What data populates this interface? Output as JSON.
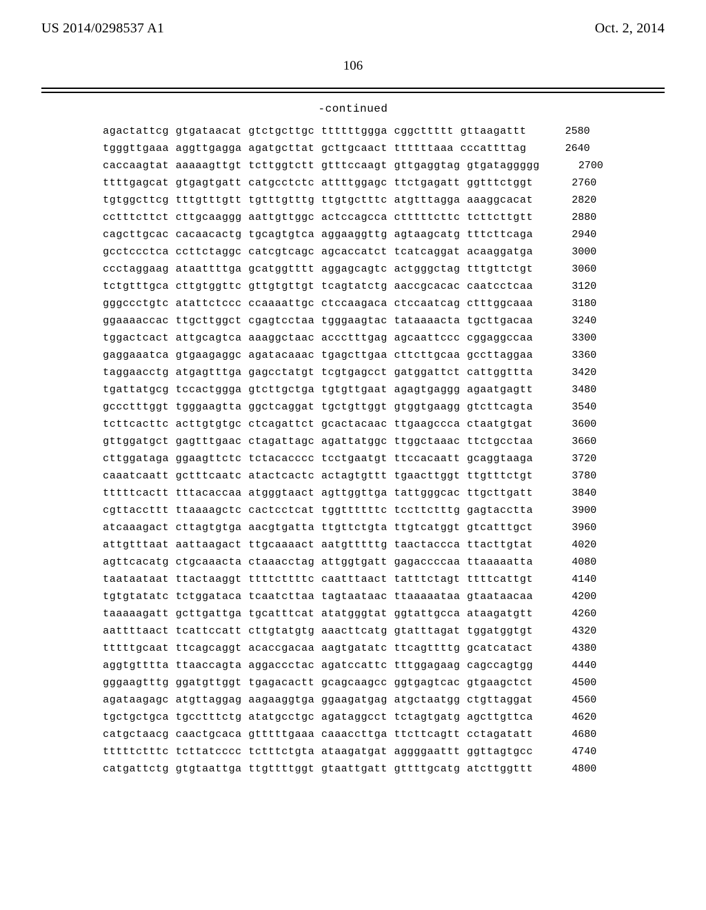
{
  "header": {
    "publication_number": "US 2014/0298537 A1",
    "date": "Oct. 2, 2014"
  },
  "page_number": "106",
  "continued_label": "-continued",
  "sequence": {
    "font_family": "Courier New",
    "font_size_pt": 11,
    "text_color": "#000000",
    "background_color": "#ffffff",
    "rows": [
      {
        "groups": [
          "agactattcg",
          "gtgataacat",
          "gtctgcttgc",
          "ttttttggga",
          "cggcttttt",
          "gttaagattt"
        ],
        "pos": 2580
      },
      {
        "groups": [
          "tgggttgaaa",
          "aggttgagga",
          "agatgcttat",
          "gcttgcaact",
          "ttttttaaa",
          "cccattttag"
        ],
        "pos": 2640
      },
      {
        "groups": [
          "caccaagtat",
          "aaaaagttgt",
          "tcttggtctt",
          "gtttccaagt",
          "gttgaggtag",
          "gtgataggggg"
        ],
        "pos": 2700
      },
      {
        "groups": [
          "ttttgagcat",
          "gtgagtgatt",
          "catgcctctc",
          "attttggagc",
          "ttctgagatt",
          "ggtttctggt"
        ],
        "pos": 2760
      },
      {
        "groups": [
          "tgtggcttcg",
          "tttgtttgtt",
          "tgtttgtttg",
          "ttgtgctttc",
          "atgtttagga",
          "aaaggcacat"
        ],
        "pos": 2820
      },
      {
        "groups": [
          "cctttcttct",
          "cttgcaaggg",
          "aattgttggc",
          "actccagcca",
          "ctttttcttc",
          "tcttcttgtt"
        ],
        "pos": 2880
      },
      {
        "groups": [
          "cagcttgcac",
          "cacaacactg",
          "tgcagtgtca",
          "aggaaggttg",
          "agtaagcatg",
          "tttcttcaga"
        ],
        "pos": 2940
      },
      {
        "groups": [
          "gcctccctca",
          "ccttctaggc",
          "catcgtcagc",
          "agcaccatct",
          "tcatcaggat",
          "acaaggatga"
        ],
        "pos": 3000
      },
      {
        "groups": [
          "ccctaggaag",
          "ataattttga",
          "gcatggtttt",
          "aggagcagtc",
          "actgggctag",
          "tttgttctgt"
        ],
        "pos": 3060
      },
      {
        "groups": [
          "tctgtttgca",
          "cttgtggttc",
          "gttgtgttgt",
          "tcagtatctg",
          "aaccgcacac",
          "caatcctcaa"
        ],
        "pos": 3120
      },
      {
        "groups": [
          "gggccctgtc",
          "atattctccc",
          "ccaaaattgc",
          "ctccaagaca",
          "ctccaatcag",
          "ctttggcaaa"
        ],
        "pos": 3180
      },
      {
        "groups": [
          "ggaaaaccac",
          "ttgcttggct",
          "cgagtcctaa",
          "tgggaagtac",
          "tataaaacta",
          "tgcttgacaa"
        ],
        "pos": 3240
      },
      {
        "groups": [
          "tggactcact",
          "attgcagtca",
          "aaaggctaac",
          "accctttgag",
          "agcaattccc",
          "cggaggccaa"
        ],
        "pos": 3300
      },
      {
        "groups": [
          "gaggaaatca",
          "gtgaagaggc",
          "agatacaaac",
          "tgagcttgaa",
          "cttcttgcaa",
          "gccttaggaa"
        ],
        "pos": 3360
      },
      {
        "groups": [
          "taggaacctg",
          "atgagtttga",
          "gagcctatgt",
          "tcgtgagcct",
          "gatggattct",
          "cattggttta"
        ],
        "pos": 3420
      },
      {
        "groups": [
          "tgattatgcg",
          "tccactggga",
          "gtcttgctga",
          "tgtgttgaat",
          "agagtgaggg",
          "agaatgagtt"
        ],
        "pos": 3480
      },
      {
        "groups": [
          "gccctttggt",
          "tgggaagtta",
          "ggctcaggat",
          "tgctgttggt",
          "gtggtgaagg",
          "gtcttcagta"
        ],
        "pos": 3540
      },
      {
        "groups": [
          "tcttcacttc",
          "acttgtgtgc",
          "ctcagattct",
          "gcactacaac",
          "ttgaagccca",
          "ctaatgtgat"
        ],
        "pos": 3600
      },
      {
        "groups": [
          "gttggatgct",
          "gagtttgaac",
          "ctagattagc",
          "agattatggc",
          "ttggctaaac",
          "ttctgcctaa"
        ],
        "pos": 3660
      },
      {
        "groups": [
          "cttggataga",
          "ggaagttctc",
          "tctacacccc",
          "tcctgaatgt",
          "ttccacaatt",
          "gcaggtaaga"
        ],
        "pos": 3720
      },
      {
        "groups": [
          "caaatcaatt",
          "gctttcaatc",
          "atactcactc",
          "actagtgttt",
          "tgaacttggt",
          "ttgtttctgt"
        ],
        "pos": 3780
      },
      {
        "groups": [
          "tttttcactt",
          "tttacaccaa",
          "atgggtaact",
          "agttggttga",
          "tattgggcac",
          "ttgcttgatt"
        ],
        "pos": 3840
      },
      {
        "groups": [
          "cgttaccttt",
          "ttaaaagctc",
          "cactcctcat",
          "tggttttttc",
          "tccttctttg",
          "gagtacctta"
        ],
        "pos": 3900
      },
      {
        "groups": [
          "atcaaagact",
          "cttagtgtga",
          "aacgtgatta",
          "ttgttctgta",
          "ttgtcatggt",
          "gtcatttgct"
        ],
        "pos": 3960
      },
      {
        "groups": [
          "attgtttaat",
          "aattaagact",
          "ttgcaaaact",
          "aatgtttttg",
          "taactaccca",
          "ttacttgtat"
        ],
        "pos": 4020
      },
      {
        "groups": [
          "agttcacatg",
          "ctgcaaacta",
          "ctaaacctag",
          "attggtgatt",
          "gagaccccaa",
          "ttaaaaatta"
        ],
        "pos": 4080
      },
      {
        "groups": [
          "taataataat",
          "ttactaaggt",
          "ttttcttttc",
          "caatttaact",
          "tatttctagt",
          "ttttcattgt"
        ],
        "pos": 4140
      },
      {
        "groups": [
          "tgtgtatatc",
          "tctggataca",
          "tcaatcttaa",
          "tagtaataac",
          "ttaaaaataa",
          "gtaataacaa"
        ],
        "pos": 4200
      },
      {
        "groups": [
          "taaaaagatt",
          "gcttgattga",
          "tgcatttcat",
          "atatgggtat",
          "ggtattgcca",
          "ataagatgtt"
        ],
        "pos": 4260
      },
      {
        "groups": [
          "aattttaact",
          "tcattccatt",
          "cttgtatgtg",
          "aaacttcatg",
          "gtatttagat",
          "tggatggtgt"
        ],
        "pos": 4320
      },
      {
        "groups": [
          "tttttgcaat",
          "ttcagcaggt",
          "acaccgacaa",
          "aagtgatatc",
          "ttcagttttg",
          "gcatcatact"
        ],
        "pos": 4380
      },
      {
        "groups": [
          "aggtgtttta",
          "ttaaccagta",
          "aggaccctac",
          "agatccattc",
          "tttggagaag",
          "cagccagtgg"
        ],
        "pos": 4440
      },
      {
        "groups": [
          "gggaagtttg",
          "ggatgttggt",
          "tgagacactt",
          "gcagcaagcc",
          "ggtgagtcac",
          "gtgaagctct"
        ],
        "pos": 4500
      },
      {
        "groups": [
          "agataagagc",
          "atgttaggag",
          "aagaaggtga",
          "ggaagatgag",
          "atgctaatgg",
          "ctgttaggat"
        ],
        "pos": 4560
      },
      {
        "groups": [
          "tgctgctgca",
          "tgcctttctg",
          "atatgcctgc",
          "agataggcct",
          "tctagtgatg",
          "agcttgttca"
        ],
        "pos": 4620
      },
      {
        "groups": [
          "catgctaacg",
          "caactgcaca",
          "gtttttgaaa",
          "caaaccttga",
          "ttcttcagtt",
          "cctagatatt"
        ],
        "pos": 4680
      },
      {
        "groups": [
          "tttttctttc",
          "tcttatcccc",
          "tctttctgta",
          "ataagatgat",
          "aggggaattt",
          "ggttagtgcc"
        ],
        "pos": 4740
      },
      {
        "groups": [
          "catgattctg",
          "gtgtaattga",
          "ttgttttggt",
          "gtaattgatt",
          "gttttgcatg",
          "atcttggttt"
        ],
        "pos": 4800
      }
    ]
  }
}
